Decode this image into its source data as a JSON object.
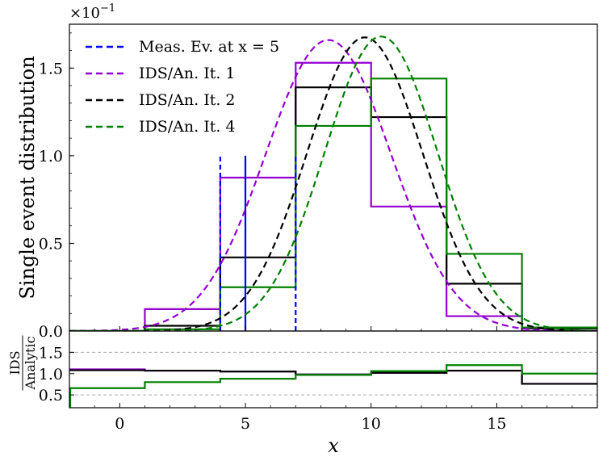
{
  "chart_data": {
    "type": "line",
    "main_panel": {
      "ylabel": "Single event distribution",
      "y_multiplier_label": "×10",
      "y_multiplier_exponent": "−1",
      "xlim": [
        -2,
        19
      ],
      "ylim": [
        0,
        1.75
      ],
      "y_ticks": [
        "0.0",
        "0.5",
        "1.0",
        "1.5"
      ],
      "y_tick_values": [
        0.0,
        0.5,
        1.0,
        1.5
      ],
      "measured_event": {
        "name": "Meas. Ev. at x = 5",
        "color": "#0000ff",
        "x": 5,
        "dashed_edges": [
          4,
          7
        ],
        "dashed_height": 1.0,
        "solid_height": 1.0
      },
      "iterations": [
        {
          "name": "IDS/An. It. 1",
          "color": "#9400d3",
          "mu": 8.3,
          "sigma": 2.5,
          "peak": 1.66,
          "bin_edges": [
            -2,
            1,
            4,
            7,
            10,
            13,
            16,
            19
          ],
          "hist": [
            0.0,
            0.125,
            0.875,
            1.53,
            0.71,
            0.085,
            0.0
          ]
        },
        {
          "name": "IDS/An. It. 2",
          "color": "#000000",
          "mu": 9.75,
          "sigma": 2.3,
          "peak": 1.675,
          "bin_edges": [
            -2,
            1,
            4,
            7,
            10,
            13,
            16,
            19
          ],
          "hist": [
            0.0,
            0.03,
            0.42,
            1.39,
            1.22,
            0.27,
            0.015
          ]
        },
        {
          "name": "IDS/An. It. 4",
          "color": "#008000",
          "mu": 10.4,
          "sigma": 2.25,
          "peak": 1.68,
          "bin_edges": [
            -2,
            1,
            4,
            7,
            10,
            13,
            16,
            19
          ],
          "hist": [
            0.0,
            0.01,
            0.25,
            1.17,
            1.44,
            0.44,
            0.02
          ]
        }
      ]
    },
    "ratio_panel": {
      "ylabel_numerator": "IDS",
      "ylabel_denominator": "Analytic",
      "ylim": [
        0.2,
        2.0
      ],
      "y_ticks": [
        "0.5",
        "1.0",
        "1.5"
      ],
      "y_tick_values": [
        0.5,
        1.0,
        1.5
      ],
      "reference_lines": [
        0.5,
        1.5
      ],
      "bin_edges": [
        -2,
        1,
        4,
        7,
        10,
        13,
        16,
        19
      ],
      "series": [
        {
          "name": "IDS/An. It. 1",
          "color": "#9400d3",
          "values": [
            1.1,
            1.07,
            1.05,
            0.98,
            1.02,
            1.07,
            0.76
          ]
        },
        {
          "name": "IDS/An. It. 2",
          "color": "#000000",
          "values": [
            1.08,
            1.07,
            1.05,
            0.98,
            1.02,
            1.07,
            0.76
          ]
        },
        {
          "name": "IDS/An. It. 4",
          "color": "#008000",
          "values": [
            0.66,
            0.8,
            0.88,
            0.97,
            1.06,
            1.2,
            1.0
          ]
        }
      ]
    },
    "xlabel": "x",
    "x_ticks": [
      "0",
      "5",
      "10",
      "15"
    ],
    "x_tick_values": [
      0,
      5,
      10,
      15
    ]
  }
}
